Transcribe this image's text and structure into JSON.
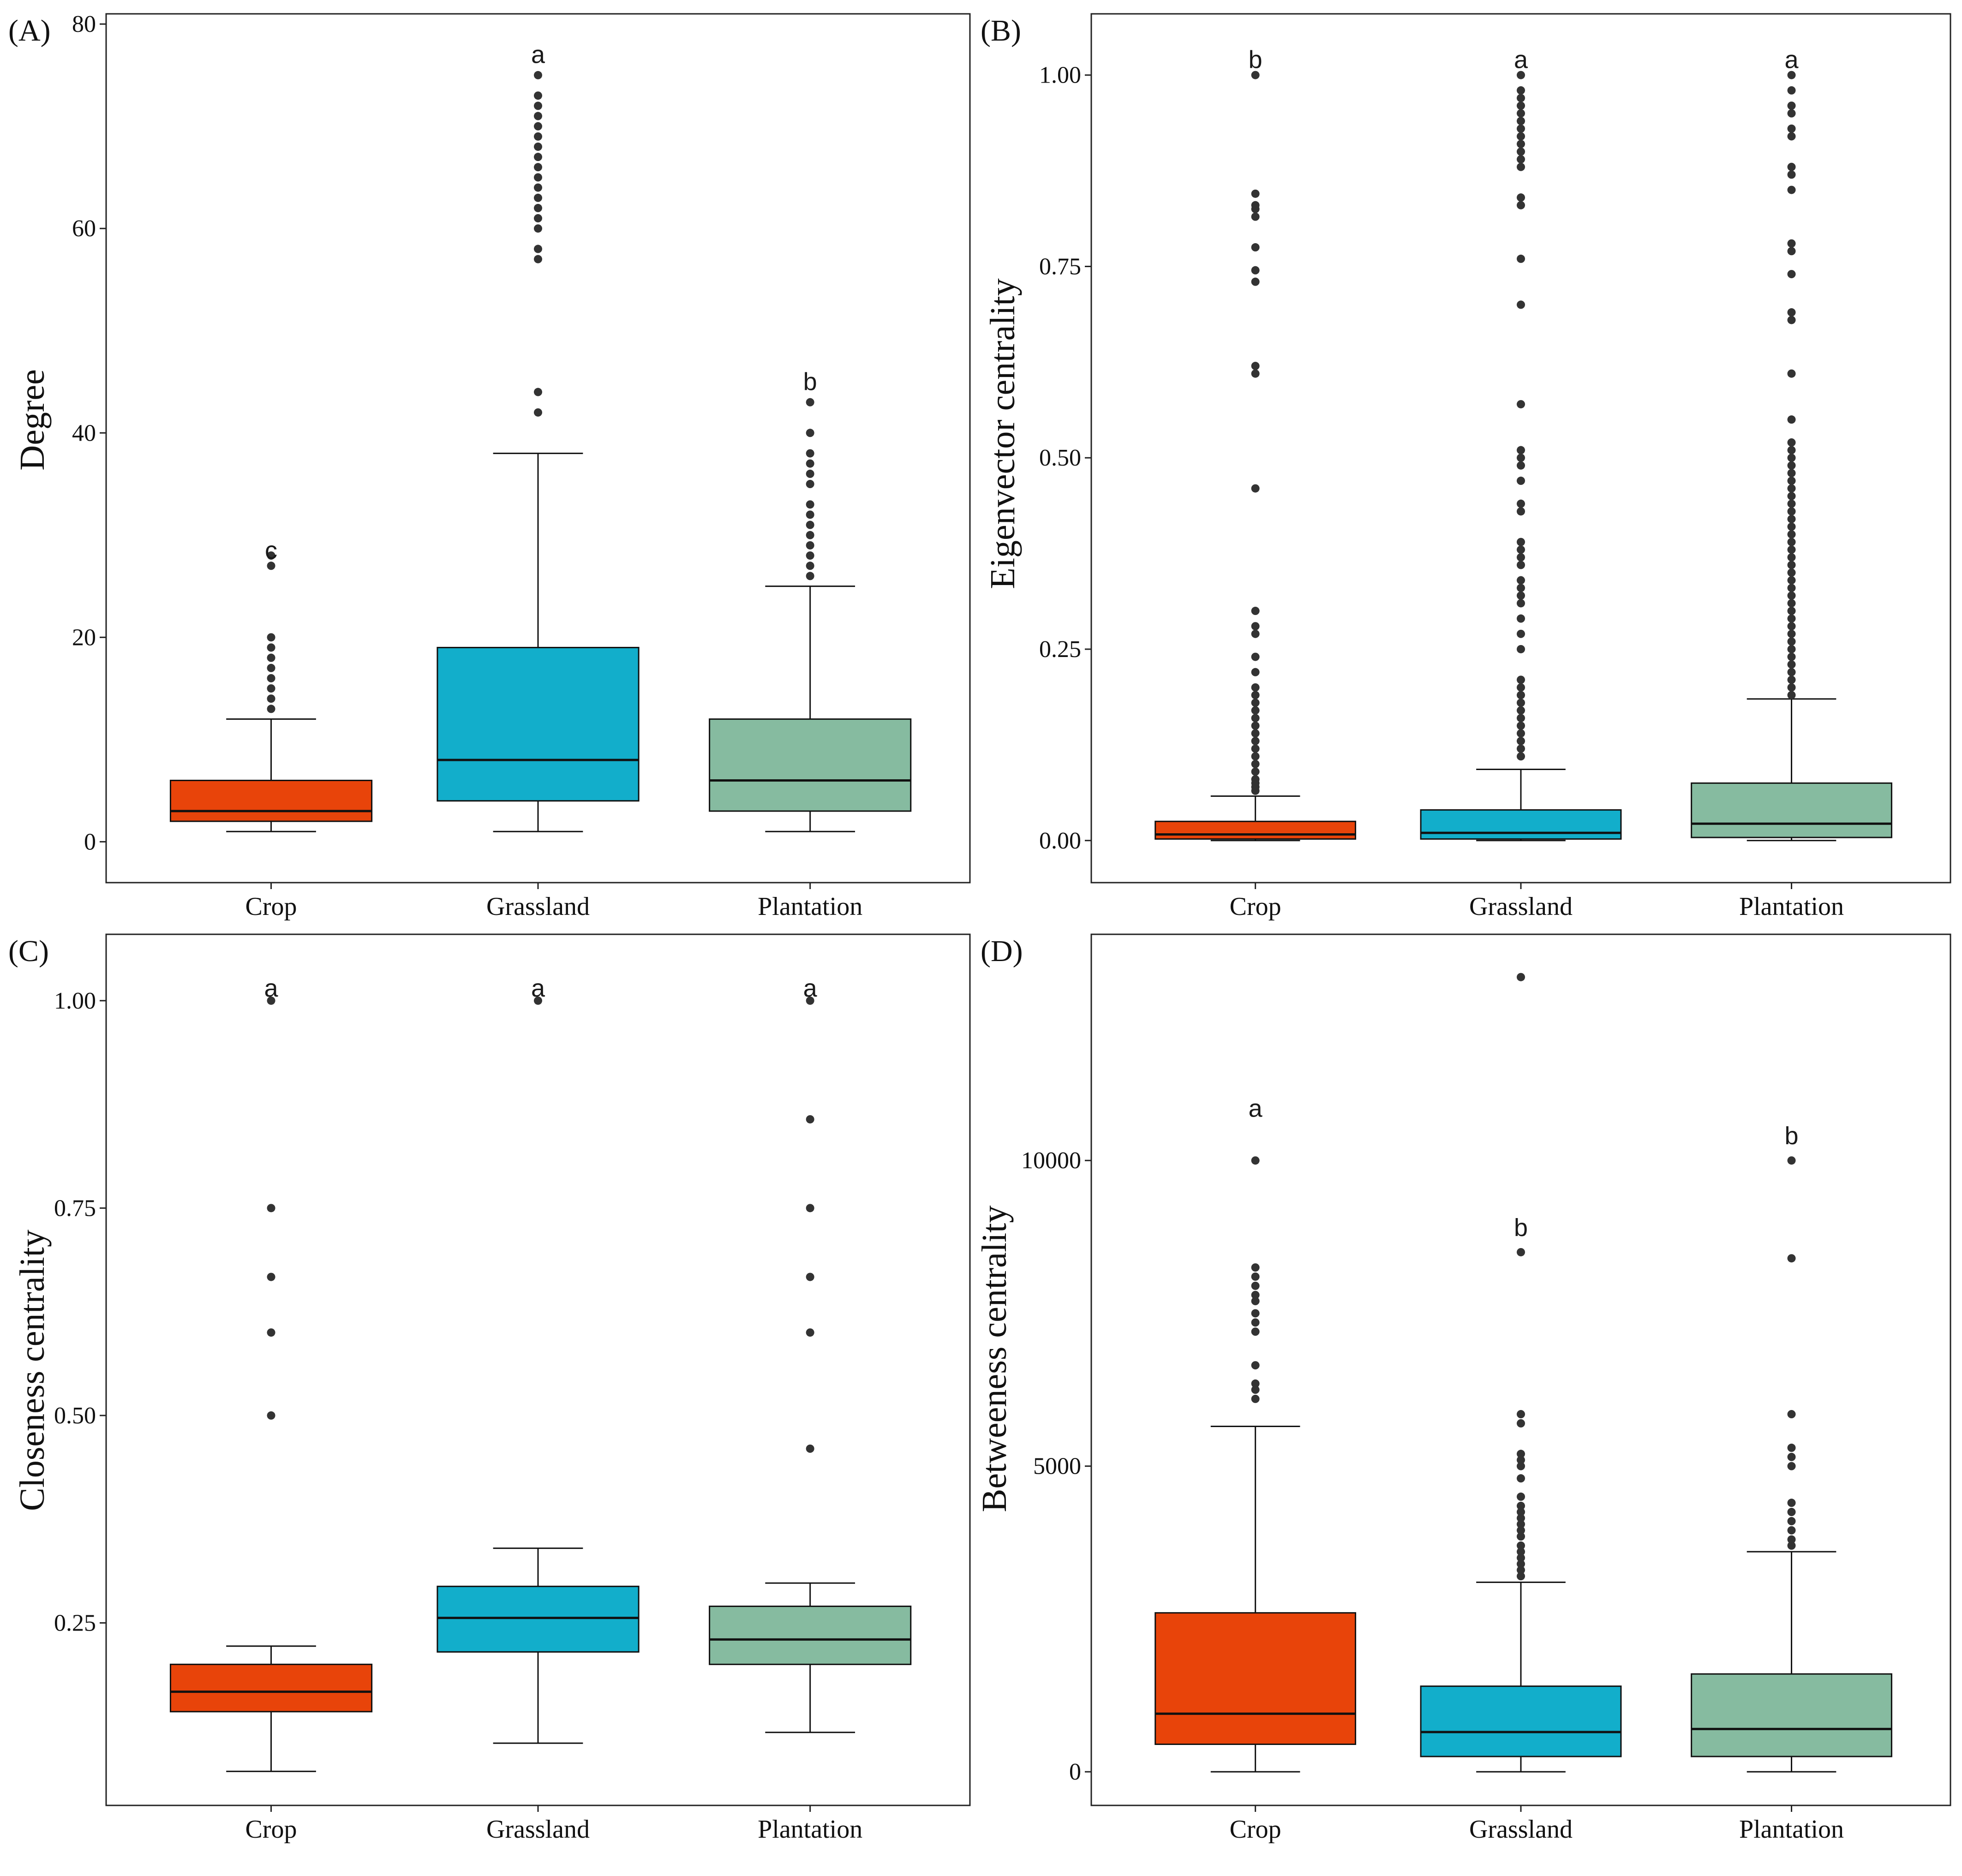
{
  "figure": {
    "category_colors": {
      "Crop": "#E8440A",
      "Grassland": "#12AECB",
      "Plantation": "#86BBA0"
    }
  },
  "chart_data": [
    {
      "id": "A",
      "panel_label": "(A)",
      "type": "boxplot",
      "ylabel": "Degree",
      "ylim": [
        -4,
        81
      ],
      "yticks": [
        0,
        20,
        40,
        60,
        80
      ],
      "ytick_labels": [
        "0",
        "20",
        "40",
        "60",
        "80"
      ],
      "categories": [
        "Crop",
        "Grassland",
        "Plantation"
      ],
      "boxes": [
        {
          "category": "Crop",
          "whisker_low": 1,
          "q1": 2,
          "median": 3,
          "q3": 6,
          "whisker_high": 12,
          "sig_letter": "c",
          "sig_y": 28.5,
          "outliers": [
            13,
            14,
            15,
            16,
            17,
            18,
            19,
            20,
            27,
            28
          ]
        },
        {
          "category": "Grassland",
          "whisker_low": 1,
          "q1": 4,
          "median": 8,
          "q3": 19,
          "whisker_high": 38,
          "sig_letter": "a",
          "sig_y": 77,
          "outliers": [
            42,
            44,
            57,
            58,
            60,
            61,
            62,
            63,
            64,
            65,
            66,
            67,
            68,
            69,
            70,
            71,
            72,
            73,
            75
          ]
        },
        {
          "category": "Plantation",
          "whisker_low": 1,
          "q1": 3,
          "median": 6,
          "q3": 12,
          "whisker_high": 25,
          "sig_letter": "b",
          "sig_y": 45,
          "outliers": [
            26,
            27,
            28,
            29,
            30,
            31,
            32,
            33,
            35,
            36,
            37,
            38,
            40,
            43
          ]
        }
      ]
    },
    {
      "id": "B",
      "panel_label": "(B)",
      "type": "boxplot",
      "ylabel": "Eigenvector centrality",
      "ylim": [
        -0.055,
        1.08
      ],
      "yticks": [
        0,
        0.25,
        0.5,
        0.75,
        1.0
      ],
      "ytick_labels": [
        "0.00",
        "0.25",
        "0.50",
        "0.75",
        "1.00"
      ],
      "categories": [
        "Crop",
        "Grassland",
        "Plantation"
      ],
      "boxes": [
        {
          "category": "Crop",
          "whisker_low": 0.0,
          "q1": 0.002,
          "median": 0.008,
          "q3": 0.025,
          "whisker_high": 0.058,
          "sig_letter": "b",
          "sig_y": 1.02,
          "outliers": [
            0.065,
            0.07,
            0.075,
            0.08,
            0.09,
            0.1,
            0.11,
            0.12,
            0.13,
            0.14,
            0.15,
            0.16,
            0.17,
            0.18,
            0.19,
            0.2,
            0.22,
            0.24,
            0.27,
            0.28,
            0.3,
            0.46,
            0.61,
            0.62,
            0.73,
            0.745,
            0.775,
            0.815,
            0.825,
            0.83,
            0.845,
            1.0
          ]
        },
        {
          "category": "Grassland",
          "whisker_low": 0.0,
          "q1": 0.002,
          "median": 0.01,
          "q3": 0.04,
          "whisker_high": 0.093,
          "sig_letter": "a",
          "sig_y": 1.02,
          "outliers": [
            0.11,
            0.12,
            0.13,
            0.14,
            0.15,
            0.16,
            0.17,
            0.18,
            0.19,
            0.2,
            0.21,
            0.25,
            0.27,
            0.29,
            0.31,
            0.32,
            0.33,
            0.34,
            0.36,
            0.37,
            0.38,
            0.39,
            0.43,
            0.44,
            0.47,
            0.49,
            0.5,
            0.51,
            0.57,
            0.7,
            0.76,
            0.83,
            0.84,
            0.88,
            0.89,
            0.9,
            0.91,
            0.92,
            0.93,
            0.94,
            0.95,
            0.96,
            0.97,
            0.98,
            1.0
          ]
        },
        {
          "category": "Plantation",
          "whisker_low": 0.0,
          "q1": 0.004,
          "median": 0.022,
          "q3": 0.075,
          "whisker_high": 0.185,
          "sig_letter": "a",
          "sig_y": 1.02,
          "outliers": [
            0.19,
            0.2,
            0.21,
            0.22,
            0.23,
            0.24,
            0.25,
            0.26,
            0.27,
            0.28,
            0.29,
            0.3,
            0.31,
            0.32,
            0.33,
            0.34,
            0.35,
            0.36,
            0.37,
            0.38,
            0.39,
            0.4,
            0.41,
            0.42,
            0.43,
            0.44,
            0.45,
            0.46,
            0.47,
            0.48,
            0.49,
            0.5,
            0.51,
            0.52,
            0.55,
            0.61,
            0.68,
            0.69,
            0.74,
            0.77,
            0.78,
            0.85,
            0.87,
            0.88,
            0.92,
            0.93,
            0.95,
            0.96,
            0.98,
            1.0
          ]
        }
      ]
    },
    {
      "id": "C",
      "panel_label": "(C)",
      "type": "boxplot",
      "ylabel": "Closeness centrality",
      "ylim": [
        0.03,
        1.08
      ],
      "yticks": [
        0.25,
        0.5,
        0.75,
        1.0
      ],
      "ytick_labels": [
        "0.25",
        "0.50",
        "0.75",
        "1.00"
      ],
      "categories": [
        "Crop",
        "Grassland",
        "Plantation"
      ],
      "boxes": [
        {
          "category": "Crop",
          "whisker_low": 0.071,
          "q1": 0.143,
          "median": 0.167,
          "q3": 0.2,
          "whisker_high": 0.222,
          "sig_letter": "a",
          "sig_y": 1.015,
          "outliers": [
            0.5,
            0.6,
            0.667,
            0.75,
            1.0
          ]
        },
        {
          "category": "Grassland",
          "whisker_low": 0.105,
          "q1": 0.215,
          "median": 0.256,
          "q3": 0.294,
          "whisker_high": 0.34,
          "sig_letter": "a",
          "sig_y": 1.015,
          "outliers": [
            1.0
          ]
        },
        {
          "category": "Plantation",
          "whisker_low": 0.118,
          "q1": 0.2,
          "median": 0.23,
          "q3": 0.27,
          "whisker_high": 0.298,
          "sig_letter": "a",
          "sig_y": 1.015,
          "outliers": [
            0.46,
            0.6,
            0.667,
            0.75,
            0.857,
            1.0
          ]
        }
      ]
    },
    {
      "id": "D",
      "panel_label": "(D)",
      "type": "boxplot",
      "ylabel": "Betweeness centrality",
      "ylim": [
        -550,
        13700
      ],
      "yticks": [
        0,
        5000,
        10000
      ],
      "ytick_labels": [
        "0",
        "5000",
        "10000"
      ],
      "categories": [
        "Crop",
        "Grassland",
        "Plantation"
      ],
      "boxes": [
        {
          "category": "Crop",
          "whisker_low": 0,
          "q1": 450,
          "median": 950,
          "q3": 2600,
          "whisker_high": 5650,
          "sig_letter": "a",
          "sig_y": 10850,
          "outliers": [
            6100,
            6250,
            6350,
            6650,
            7200,
            7350,
            7500,
            7700,
            7800,
            7950,
            8100,
            8250,
            10000
          ]
        },
        {
          "category": "Grassland",
          "whisker_low": 0,
          "q1": 250,
          "median": 650,
          "q3": 1400,
          "whisker_high": 3100,
          "sig_letter": "b",
          "sig_y": 8900,
          "outliers": [
            3200,
            3300,
            3400,
            3500,
            3600,
            3700,
            3850,
            3950,
            4050,
            4150,
            4250,
            4350,
            4500,
            4800,
            5000,
            5100,
            5200,
            5700,
            5850,
            8500,
            13000
          ]
        },
        {
          "category": "Plantation",
          "whisker_low": 0,
          "q1": 250,
          "median": 700,
          "q3": 1600,
          "whisker_high": 3600,
          "sig_letter": "b",
          "sig_y": 10400,
          "outliers": [
            3700,
            3800,
            3950,
            4100,
            4250,
            4400,
            5000,
            5150,
            5300,
            5850,
            8400,
            10000
          ]
        }
      ]
    }
  ]
}
